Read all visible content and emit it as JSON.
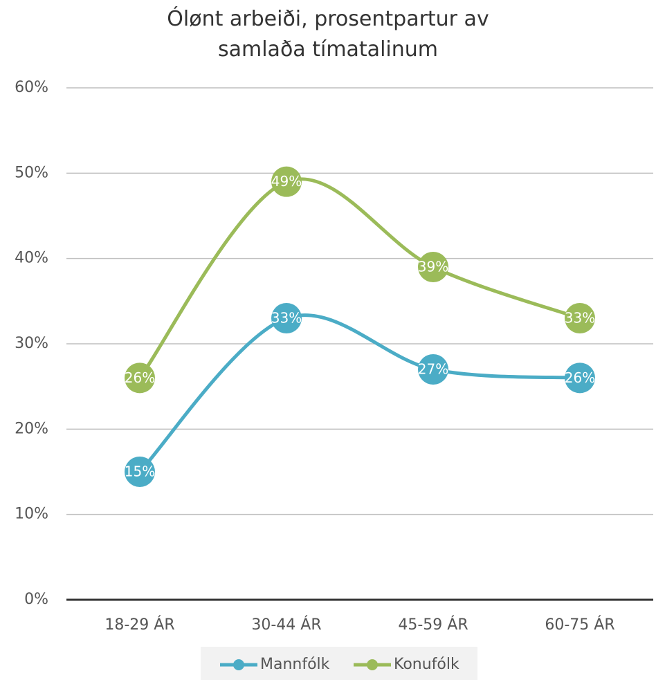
{
  "chart_data": {
    "type": "line",
    "title": "Ólønt arbeiði, prosentpartur av samlaða tímatalinum",
    "categories": [
      "18-29 ÁR",
      "30-44 ÁR",
      "45-59 ÁR",
      "60-75 ÁR"
    ],
    "series": [
      {
        "name": "Mannfólk",
        "color": "#4bacc6",
        "values": [
          15,
          33,
          27,
          26
        ],
        "value_labels": [
          "15%",
          "33%",
          "27%",
          "26%"
        ]
      },
      {
        "name": "Konufólk",
        "color": "#9bbb59",
        "values": [
          26,
          49,
          39,
          33
        ],
        "value_labels": [
          "26%",
          "49%",
          "39%",
          "33%"
        ]
      }
    ],
    "ylim": [
      0,
      60
    ],
    "yticks": [
      {
        "value": 0,
        "label": "0%"
      },
      {
        "value": 10,
        "label": "10%"
      },
      {
        "value": 20,
        "label": "20%"
      },
      {
        "value": 30,
        "label": "30%"
      },
      {
        "value": 40,
        "label": "40%"
      },
      {
        "value": 50,
        "label": "50%"
      },
      {
        "value": 60,
        "label": "60%"
      }
    ],
    "grid": true,
    "smooth": true,
    "legend": "bottom"
  }
}
